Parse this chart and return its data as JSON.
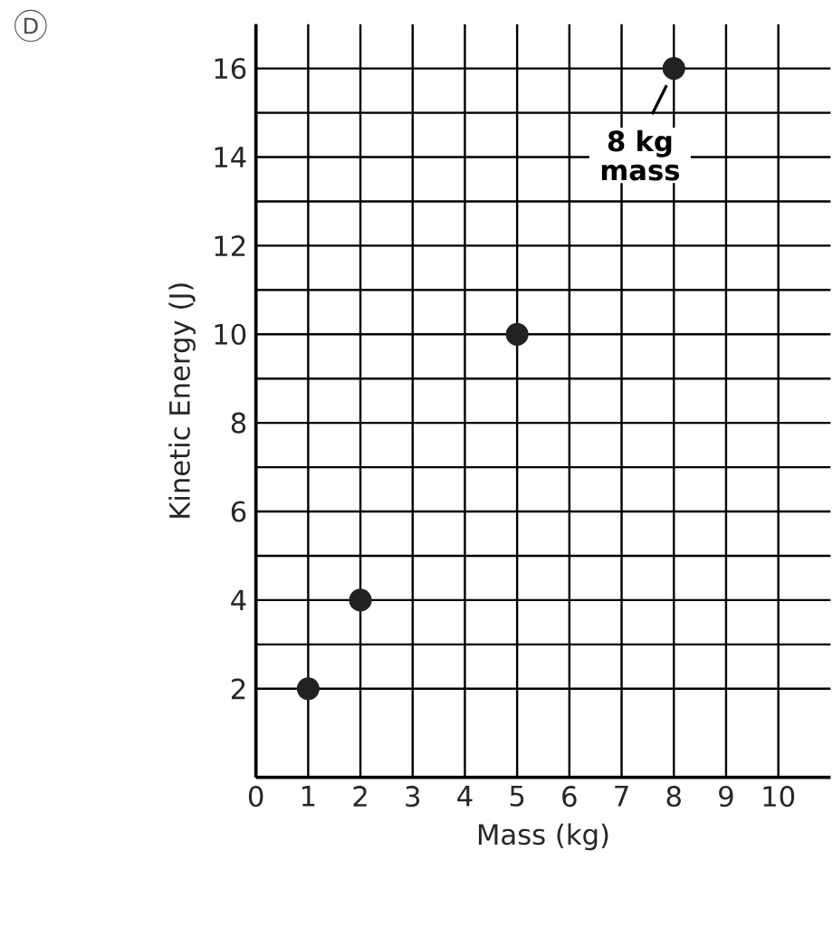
{
  "chart_data": {
    "type": "scatter",
    "xlabel": "Mass (kg)",
    "ylabel": "Kinetic Energy (J)",
    "x": [
      1,
      2,
      5,
      8
    ],
    "series": [
      {
        "color": "#222222",
        "values": [
          2,
          4,
          10,
          16
        ]
      }
    ],
    "xlim": [
      0,
      11
    ],
    "ylim": [
      0,
      17
    ],
    "xticks": [
      0,
      1,
      2,
      3,
      4,
      5,
      6,
      7,
      8,
      9,
      10
    ],
    "yticks": [
      2,
      4,
      6,
      8,
      10,
      12,
      14,
      16
    ],
    "grid": true,
    "marker": "circle",
    "annotations": [
      "D",
      {
        "text": "8 kg mass",
        "x": 8,
        "y": 16
      }
    ]
  }
}
